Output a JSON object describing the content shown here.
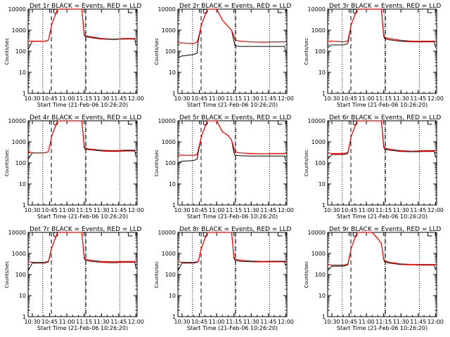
{
  "axis": {
    "xlabel": "Start Time (21-Feb-06 10:26:20)",
    "ylabel": "Counts/sec",
    "x_tick_labels": [
      "10:30",
      "10:45",
      "11:00",
      "11:15",
      "11:30",
      "11:45",
      "12:00"
    ],
    "y_tick_labels": [
      "1",
      "10",
      "100",
      "1000",
      "10000"
    ]
  },
  "colors": {
    "events": "#000000",
    "lld": "#ff0000"
  },
  "chart_data": [
    {
      "type": "line",
      "title": "Det 1r BLACK = Events, RED = LLD",
      "x": [
        "10:26:20",
        "10:30",
        "10:40",
        "10:43",
        "10:44",
        "10:47",
        "10:52",
        "11:05",
        "11:13",
        "11:15",
        "11:16",
        "11:20",
        "11:30",
        "11:40",
        "11:50",
        "11:59",
        "12:00"
      ],
      "xlim": [
        "10:26:20",
        "12:01"
      ],
      "ylim": [
        1,
        10000
      ],
      "yscale": "log",
      "dashed_vlines": [
        "10:46:30",
        "11:16:30"
      ],
      "dotted_vlines": [
        "10:39",
        "11:16",
        "11:46"
      ],
      "series": [
        {
          "name": "Events",
          "color": "#000000",
          "values": [
            120,
            300,
            300,
            320,
            340,
            2000,
            10000,
            10000,
            10000,
            600,
            500,
            450,
            380,
            360,
            380,
            380,
            200
          ]
        },
        {
          "name": "LLD",
          "color": "#ff0000",
          "values": [
            300,
            300,
            300,
            320,
            340,
            2000,
            10000,
            10000,
            10000,
            700,
            550,
            500,
            400,
            380,
            400,
            400,
            400
          ]
        }
      ]
    },
    {
      "type": "line",
      "title": "Det 2r BLACK = Events, RED = LLD",
      "x": [
        "10:26:20",
        "10:30",
        "10:40",
        "10:43",
        "10:44",
        "10:47",
        "10:52",
        "11:00",
        "11:05",
        "11:10",
        "11:13",
        "11:15",
        "11:16",
        "11:20",
        "11:30",
        "11:40",
        "11:50",
        "11:59",
        "12:00"
      ],
      "xlim": [
        "10:26:20",
        "12:01"
      ],
      "ylim": [
        1,
        10000
      ],
      "yscale": "log",
      "dashed_vlines": [
        "10:46:30",
        "11:16:30"
      ],
      "dotted_vlines": [
        "10:39",
        "11:16",
        "11:46"
      ],
      "series": [
        {
          "name": "Events",
          "color": "#000000",
          "values": [
            50,
            60,
            70,
            80,
            300,
            2000,
            10000,
            10000,
            3000,
            1500,
            1000,
            300,
            180,
            170,
            170,
            170,
            170,
            170,
            100
          ]
        },
        {
          "name": "LLD",
          "color": "#ff0000",
          "values": [
            250,
            250,
            230,
            280,
            400,
            2000,
            10000,
            10000,
            3000,
            1500,
            1000,
            500,
            350,
            300,
            280,
            270,
            280,
            280,
            280
          ]
        }
      ]
    },
    {
      "type": "line",
      "title": "Det 3r BLACK = Events, RED = LLD",
      "x": [
        "10:26:20",
        "10:30",
        "10:40",
        "10:43",
        "10:44",
        "10:47",
        "10:52",
        "11:05",
        "11:13",
        "11:15",
        "11:16",
        "11:20",
        "11:30",
        "11:40",
        "11:50",
        "11:59",
        "12:00"
      ],
      "xlim": [
        "10:26:20",
        "12:01"
      ],
      "ylim": [
        1,
        10000
      ],
      "yscale": "log",
      "dashed_vlines": [
        "10:46:30",
        "11:16:30"
      ],
      "dotted_vlines": [
        "10:39",
        "11:16",
        "11:46"
      ],
      "series": [
        {
          "name": "Events",
          "color": "#000000",
          "values": [
            150,
            200,
            200,
            220,
            250,
            2000,
            10000,
            10000,
            10000,
            500,
            400,
            350,
            300,
            280,
            280,
            280,
            150
          ]
        },
        {
          "name": "LLD",
          "color": "#ff0000",
          "values": [
            300,
            300,
            280,
            300,
            330,
            2000,
            10000,
            10000,
            10000,
            600,
            450,
            400,
            330,
            300,
            300,
            300,
            300
          ]
        }
      ]
    },
    {
      "type": "line",
      "title": "Det 4r BLACK = Events, RED = LLD",
      "x": [
        "10:26:20",
        "10:30",
        "10:40",
        "10:43",
        "10:44",
        "10:47",
        "10:52",
        "11:05",
        "11:13",
        "11:15",
        "11:16",
        "11:20",
        "11:30",
        "11:40",
        "11:50",
        "11:59",
        "12:00"
      ],
      "xlim": [
        "10:26:20",
        "12:01"
      ],
      "ylim": [
        1,
        10000
      ],
      "yscale": "log",
      "dashed_vlines": [
        "10:46:30",
        "11:16:30"
      ],
      "dotted_vlines": [
        "10:39",
        "11:16",
        "11:46"
      ],
      "series": [
        {
          "name": "Events",
          "color": "#000000",
          "values": [
            150,
            300,
            300,
            320,
            350,
            2000,
            10000,
            10000,
            10000,
            550,
            450,
            420,
            370,
            350,
            370,
            370,
            200
          ]
        },
        {
          "name": "LLD",
          "color": "#ff0000",
          "values": [
            350,
            300,
            300,
            320,
            350,
            2000,
            10000,
            10000,
            10000,
            650,
            500,
            450,
            400,
            380,
            400,
            400,
            400
          ]
        }
      ]
    },
    {
      "type": "line",
      "title": "Det 5r BLACK = Events, RED = LLD",
      "x": [
        "10:26:20",
        "10:30",
        "10:40",
        "10:43",
        "10:44",
        "10:47",
        "10:52",
        "11:00",
        "11:05",
        "11:10",
        "11:13",
        "11:15",
        "11:16",
        "11:20",
        "11:30",
        "11:40",
        "11:50",
        "11:59",
        "12:00"
      ],
      "xlim": [
        "10:26:20",
        "12:01"
      ],
      "ylim": [
        1,
        10000
      ],
      "yscale": "log",
      "dashed_vlines": [
        "10:46:30",
        "11:16:30"
      ],
      "dotted_vlines": [
        "10:39",
        "11:16",
        "11:46"
      ],
      "series": [
        {
          "name": "Events",
          "color": "#000000",
          "values": [
            100,
            120,
            130,
            150,
            300,
            2000,
            10000,
            10000,
            3000,
            2000,
            1200,
            300,
            230,
            220,
            210,
            210,
            210,
            210,
            120
          ]
        },
        {
          "name": "LLD",
          "color": "#ff0000",
          "values": [
            250,
            230,
            230,
            250,
            400,
            2000,
            10000,
            10000,
            3000,
            2000,
            1200,
            500,
            330,
            300,
            280,
            270,
            280,
            280,
            280
          ]
        }
      ]
    },
    {
      "type": "line",
      "title": "Det 6r BLACK = Events, RED = LLD",
      "x": [
        "10:26:20",
        "10:30",
        "10:40",
        "10:43",
        "10:44",
        "10:47",
        "10:52",
        "11:05",
        "11:13",
        "11:15",
        "11:16",
        "11:20",
        "11:30",
        "11:40",
        "11:50",
        "11:59",
        "12:00"
      ],
      "xlim": [
        "10:26:20",
        "12:01"
      ],
      "ylim": [
        1,
        10000
      ],
      "yscale": "log",
      "dashed_vlines": [
        "10:46:30",
        "11:16:30"
      ],
      "dotted_vlines": [
        "10:39",
        "11:16",
        "11:46"
      ],
      "series": [
        {
          "name": "Events",
          "color": "#000000",
          "values": [
            150,
            250,
            250,
            270,
            300,
            2000,
            10000,
            10000,
            10000,
            550,
            450,
            400,
            350,
            340,
            350,
            350,
            180
          ]
        },
        {
          "name": "LLD",
          "color": "#ff0000",
          "values": [
            300,
            280,
            280,
            300,
            330,
            2000,
            10000,
            10000,
            10000,
            650,
            500,
            450,
            380,
            360,
            380,
            380,
            380
          ]
        }
      ]
    },
    {
      "type": "line",
      "title": "Det 7r BLACK = Events, RED = LLD",
      "x": [
        "10:26:20",
        "10:30",
        "10:40",
        "10:43",
        "10:44",
        "10:47",
        "10:52",
        "11:05",
        "11:13",
        "11:15",
        "11:16",
        "11:20",
        "11:30",
        "11:40",
        "11:50",
        "11:59",
        "12:00"
      ],
      "xlim": [
        "10:26:20",
        "12:01"
      ],
      "ylim": [
        1,
        10000
      ],
      "yscale": "log",
      "dashed_vlines": [
        "10:46:30",
        "11:16:30"
      ],
      "dotted_vlines": [
        "10:39",
        "11:16",
        "11:46"
      ],
      "series": [
        {
          "name": "Events",
          "color": "#000000",
          "values": [
            150,
            350,
            350,
            380,
            400,
            2000,
            10000,
            10000,
            10000,
            600,
            480,
            430,
            380,
            360,
            380,
            380,
            200
          ]
        },
        {
          "name": "LLD",
          "color": "#ff0000",
          "values": [
            400,
            380,
            380,
            400,
            430,
            2000,
            10000,
            10000,
            10000,
            700,
            550,
            480,
            420,
            400,
            420,
            420,
            420
          ]
        }
      ]
    },
    {
      "type": "line",
      "title": "Det 8r BLACK = Events, RED = LLD",
      "x": [
        "10:26:20",
        "10:30",
        "10:40",
        "10:43",
        "10:44",
        "10:47",
        "10:52",
        "11:05",
        "11:13",
        "11:15",
        "11:16",
        "11:20",
        "11:30",
        "11:40",
        "11:50",
        "11:59",
        "12:00"
      ],
      "xlim": [
        "10:26:20",
        "12:01"
      ],
      "ylim": [
        1,
        10000
      ],
      "yscale": "log",
      "dashed_vlines": [
        "10:46:30",
        "11:16:30"
      ],
      "dotted_vlines": [
        "10:39",
        "11:16",
        "11:46"
      ],
      "series": [
        {
          "name": "Events",
          "color": "#000000",
          "values": [
            150,
            350,
            350,
            380,
            400,
            2000,
            10000,
            10000,
            10000,
            600,
            480,
            430,
            400,
            400,
            400,
            400,
            250
          ]
        },
        {
          "name": "LLD",
          "color": "#ff0000",
          "values": [
            400,
            380,
            380,
            400,
            430,
            2000,
            10000,
            10000,
            10000,
            700,
            550,
            480,
            440,
            420,
            430,
            430,
            430
          ]
        }
      ]
    },
    {
      "type": "line",
      "title": "Det 9r BLACK = Events, RED = LLD",
      "x": [
        "10:26:20",
        "10:30",
        "10:40",
        "10:43",
        "10:44",
        "10:47",
        "10:52",
        "11:05",
        "11:10",
        "11:13",
        "11:15",
        "11:16",
        "11:20",
        "11:30",
        "11:40",
        "11:50",
        "11:59",
        "12:00"
      ],
      "xlim": [
        "10:26:20",
        "12:01"
      ],
      "ylim": [
        1,
        10000
      ],
      "yscale": "log",
      "dashed_vlines": [
        "10:46:30",
        "11:16:30"
      ],
      "dotted_vlines": [
        "10:39",
        "11:16",
        "11:46"
      ],
      "series": [
        {
          "name": "Events",
          "color": "#000000",
          "values": [
            150,
            250,
            250,
            280,
            300,
            2000,
            10000,
            10000,
            5000,
            3000,
            500,
            400,
            350,
            300,
            290,
            280,
            280,
            160
          ]
        },
        {
          "name": "LLD",
          "color": "#ff0000",
          "values": [
            300,
            280,
            280,
            300,
            330,
            2000,
            10000,
            10000,
            5000,
            3000,
            550,
            450,
            380,
            320,
            300,
            300,
            300,
            300
          ]
        }
      ]
    }
  ]
}
